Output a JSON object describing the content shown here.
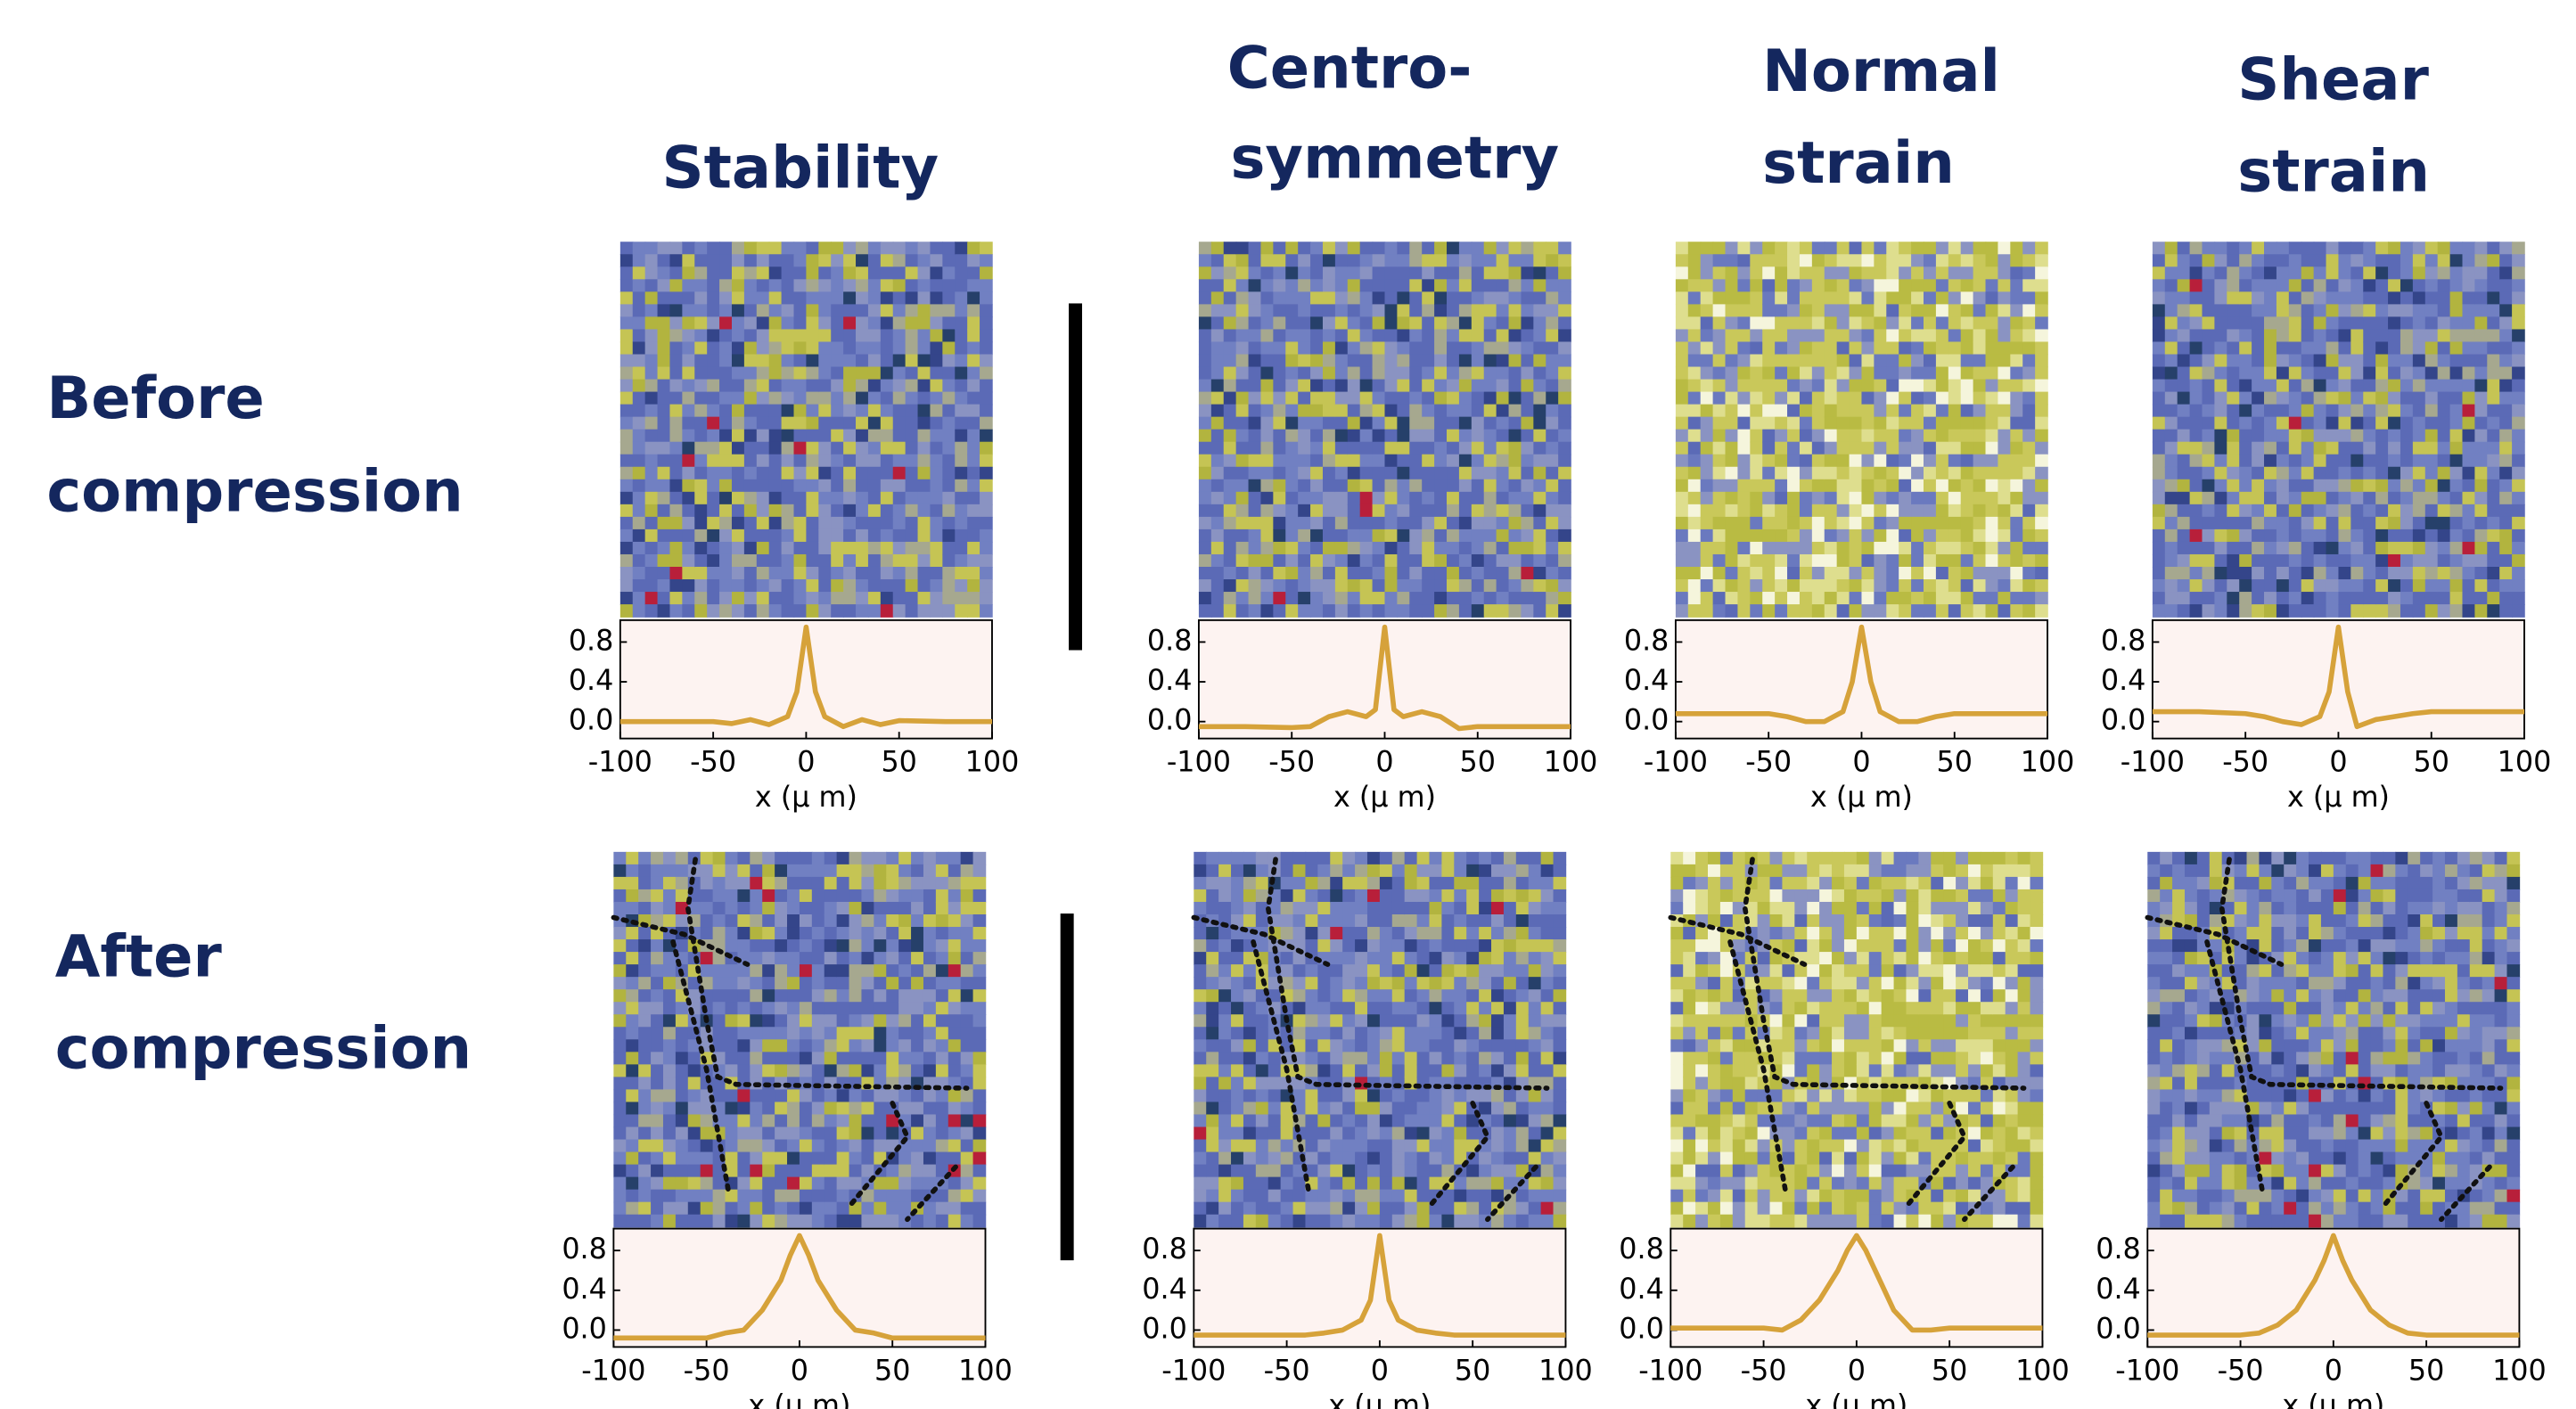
{
  "column_titles": [
    [
      "Stability"
    ],
    [
      "Centro-",
      "symmetry"
    ],
    [
      "Normal",
      "strain"
    ],
    [
      "Shear",
      "strain"
    ]
  ],
  "row_labels": [
    [
      "Before",
      "compression"
    ],
    [
      "After",
      "compression"
    ]
  ],
  "chart_data": [
    {
      "type": "line",
      "x": [
        -100,
        -75,
        -50,
        -40,
        -30,
        -20,
        -10,
        -5,
        0,
        5,
        10,
        20,
        30,
        40,
        50,
        75,
        100
      ],
      "values": [
        0,
        0,
        0,
        -0.02,
        0.02,
        -0.03,
        0.05,
        0.3,
        0.95,
        0.3,
        0.05,
        -0.05,
        0.02,
        -0.03,
        0.01,
        0,
        0
      ],
      "color": "#d6a23a",
      "xlim": [
        -100,
        100
      ],
      "ylim": [
        -0.17,
        1.02
      ],
      "xticks": [
        -100,
        -50,
        0,
        50,
        100
      ],
      "yticks": [
        {
          "value": 0,
          "label": "0.0"
        },
        0.4,
        0.8
      ],
      "xlabel": "x (μ m)"
    },
    {
      "type": "line",
      "x": [
        -100,
        -75,
        -50,
        -40,
        -30,
        -20,
        -10,
        -5,
        0,
        5,
        10,
        20,
        30,
        40,
        50,
        75,
        100
      ],
      "values": [
        -0.05,
        -0.05,
        -0.06,
        -0.05,
        0.05,
        0.1,
        0.05,
        0.12,
        0.95,
        0.12,
        0.05,
        0.1,
        0.05,
        -0.07,
        -0.05,
        -0.05,
        -0.05
      ],
      "color": "#d6a23a",
      "xlim": [
        -100,
        100
      ],
      "ylim": [
        -0.17,
        1.02
      ],
      "xticks": [
        -100,
        -50,
        0,
        50,
        100
      ],
      "yticks": [
        {
          "value": 0,
          "label": "0.0"
        },
        0.4,
        0.8
      ],
      "xlabel": "x (μ m)"
    },
    {
      "type": "line",
      "x": [
        -100,
        -75,
        -50,
        -40,
        -30,
        -20,
        -10,
        -5,
        0,
        5,
        10,
        20,
        30,
        40,
        50,
        75,
        100
      ],
      "values": [
        0.08,
        0.08,
        0.08,
        0.05,
        0,
        0,
        0.1,
        0.4,
        0.95,
        0.4,
        0.1,
        0,
        0,
        0.05,
        0.08,
        0.08,
        0.08
      ],
      "color": "#d6a23a",
      "xlim": [
        -100,
        100
      ],
      "ylim": [
        -0.17,
        1.02
      ],
      "xticks": [
        -100,
        -50,
        0,
        50,
        100
      ],
      "yticks": [
        {
          "value": 0,
          "label": "0.0"
        },
        0.4,
        0.8
      ],
      "xlabel": "x (μ m)"
    },
    {
      "type": "line",
      "x": [
        -100,
        -75,
        -50,
        -40,
        -30,
        -20,
        -10,
        -5,
        0,
        5,
        10,
        20,
        30,
        40,
        50,
        75,
        100
      ],
      "values": [
        0.1,
        0.1,
        0.08,
        0.05,
        0,
        -0.03,
        0.05,
        0.3,
        0.95,
        0.3,
        -0.05,
        0.02,
        0.05,
        0.08,
        0.1,
        0.1,
        0.1
      ],
      "color": "#d6a23a",
      "xlim": [
        -100,
        100
      ],
      "ylim": [
        -0.17,
        1.02
      ],
      "xticks": [
        -100,
        -50,
        0,
        50,
        100
      ],
      "yticks": [
        {
          "value": 0,
          "label": "0.0"
        },
        0.4,
        0.8
      ],
      "xlabel": "x (μ m)"
    },
    {
      "type": "line",
      "x": [
        -100,
        -75,
        -50,
        -40,
        -30,
        -20,
        -10,
        -5,
        0,
        5,
        10,
        20,
        30,
        40,
        50,
        75,
        100
      ],
      "values": [
        -0.08,
        -0.08,
        -0.08,
        -0.03,
        0,
        0.2,
        0.5,
        0.75,
        0.95,
        0.75,
        0.5,
        0.2,
        0,
        -0.03,
        -0.08,
        -0.08,
        -0.08
      ],
      "color": "#d6a23a",
      "xlim": [
        -100,
        100
      ],
      "ylim": [
        -0.17,
        1.02
      ],
      "xticks": [
        -100,
        -50,
        0,
        50,
        100
      ],
      "yticks": [
        {
          "value": 0,
          "label": "0.0"
        },
        0.4,
        0.8
      ],
      "xlabel": "x (μ m)"
    },
    {
      "type": "line",
      "x": [
        -100,
        -75,
        -50,
        -40,
        -30,
        -20,
        -10,
        -5,
        0,
        5,
        10,
        20,
        30,
        40,
        50,
        75,
        100
      ],
      "values": [
        -0.05,
        -0.05,
        -0.05,
        -0.05,
        -0.03,
        0,
        0.1,
        0.3,
        0.95,
        0.3,
        0.1,
        0,
        -0.03,
        -0.05,
        -0.05,
        -0.05,
        -0.05
      ],
      "color": "#d6a23a",
      "xlim": [
        -100,
        100
      ],
      "ylim": [
        -0.17,
        1.02
      ],
      "xticks": [
        -100,
        -50,
        0,
        50,
        100
      ],
      "yticks": [
        {
          "value": 0,
          "label": "0.0"
        },
        0.4,
        0.8
      ],
      "xlabel": "x (μ m)"
    },
    {
      "type": "line",
      "x": [
        -100,
        -75,
        -50,
        -40,
        -30,
        -20,
        -10,
        -5,
        0,
        5,
        10,
        20,
        30,
        40,
        50,
        75,
        100
      ],
      "values": [
        0.02,
        0.02,
        0.02,
        0,
        0.1,
        0.3,
        0.6,
        0.8,
        0.95,
        0.8,
        0.6,
        0.2,
        0,
        0,
        0.02,
        0.02,
        0.02
      ],
      "color": "#d6a23a",
      "xlim": [
        -100,
        100
      ],
      "ylim": [
        -0.17,
        1.02
      ],
      "xticks": [
        -100,
        -50,
        0,
        50,
        100
      ],
      "yticks": [
        {
          "value": 0,
          "label": "0.0"
        },
        0.4,
        0.8
      ],
      "xlabel": "x (μ m)"
    },
    {
      "type": "line",
      "x": [
        -100,
        -75,
        -50,
        -40,
        -30,
        -20,
        -10,
        -5,
        0,
        5,
        10,
        20,
        30,
        40,
        50,
        75,
        100
      ],
      "values": [
        -0.05,
        -0.05,
        -0.05,
        -0.03,
        0.05,
        0.2,
        0.5,
        0.7,
        0.95,
        0.7,
        0.5,
        0.2,
        0.05,
        -0.03,
        -0.05,
        -0.05,
        -0.05
      ],
      "color": "#d6a23a",
      "xlim": [
        -100,
        100
      ],
      "ylim": [
        -0.17,
        1.02
      ],
      "xticks": [
        -100,
        -50,
        0,
        50,
        100
      ],
      "yticks": [
        {
          "value": 0,
          "label": "0.0"
        },
        0.4,
        0.8
      ],
      "xlabel": "x (μ m)"
    }
  ]
}
